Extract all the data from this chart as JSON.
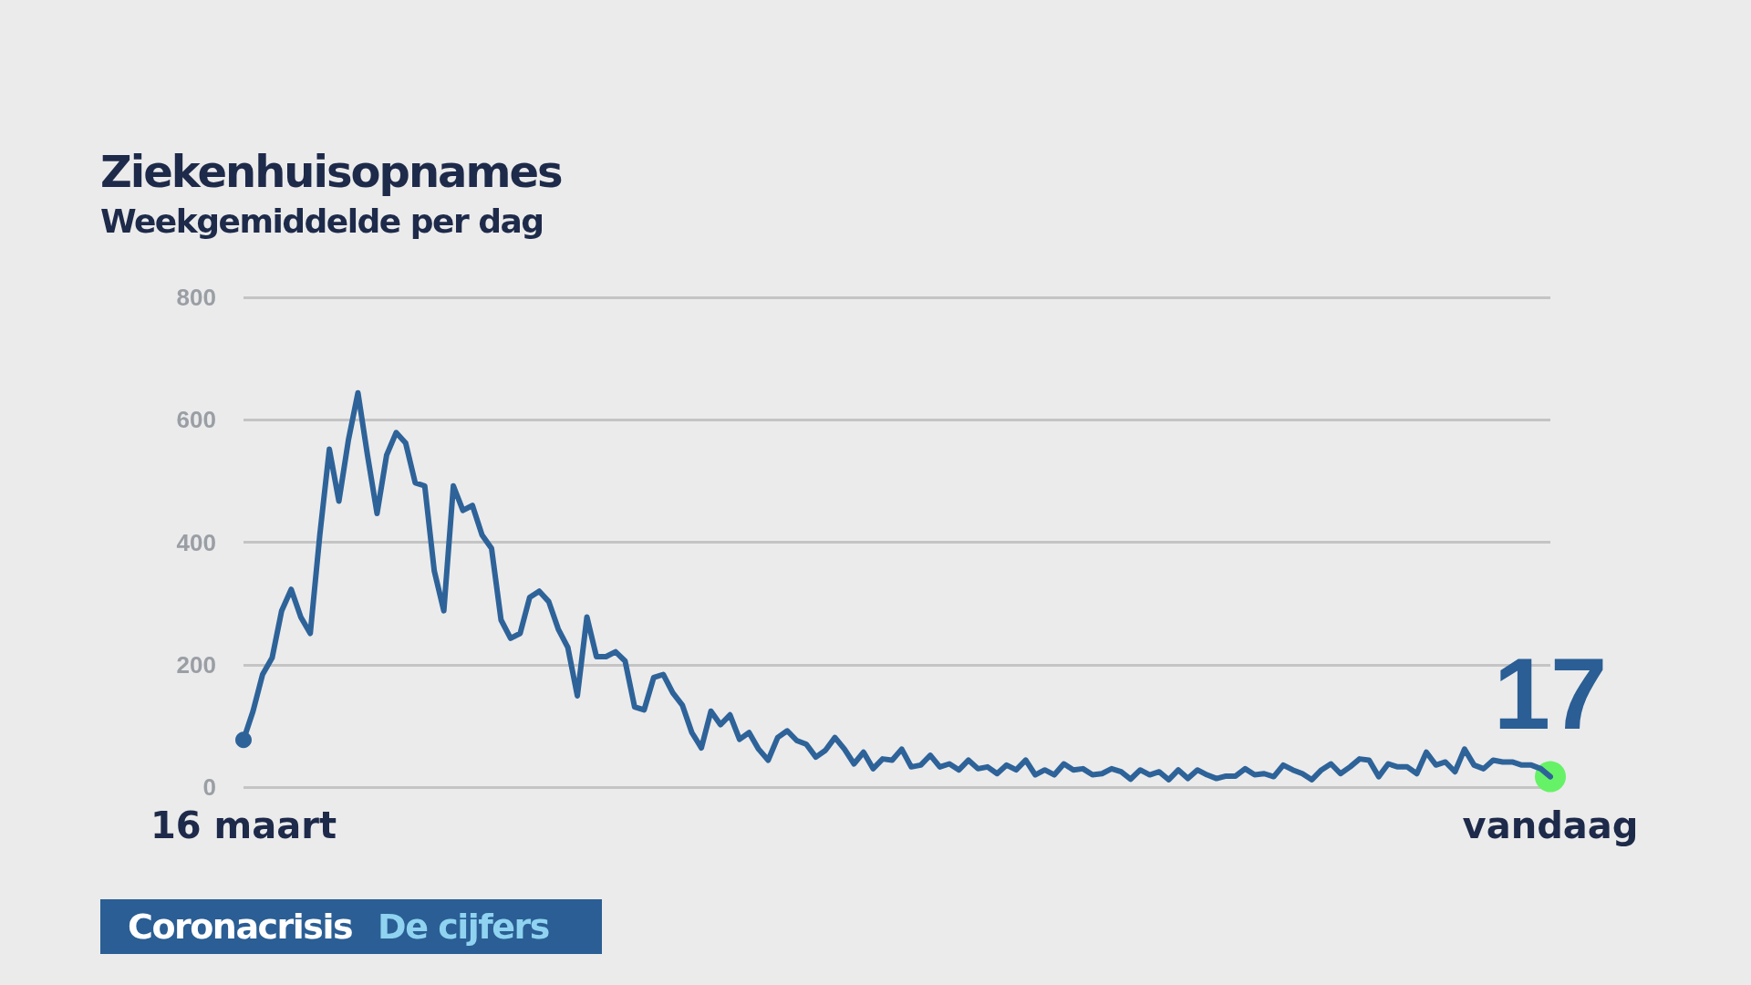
{
  "chart_data": {
    "type": "line",
    "title": "Ziekenhuisopnames",
    "subtitle": "Weekgemiddelde per dag",
    "annotations": [
      "Coronacrisis",
      "De cijfers"
    ],
    "categories": [
      "16 maart",
      null,
      null,
      null,
      null,
      null,
      null,
      null,
      null,
      null,
      null,
      null,
      null,
      null,
      null,
      null,
      null,
      null,
      null,
      null,
      null,
      null,
      null,
      null,
      null,
      null,
      null,
      null,
      null,
      null,
      null,
      null,
      null,
      null,
      null,
      null,
      null,
      null,
      null,
      null,
      null,
      null,
      null,
      null,
      null,
      null,
      null,
      null,
      null,
      null,
      null,
      null,
      null,
      null,
      null,
      null,
      null,
      null,
      null,
      null,
      null,
      null,
      null,
      null,
      null,
      null,
      null,
      null,
      null,
      null,
      null,
      null,
      null,
      null,
      null,
      null,
      null,
      null,
      null,
      null,
      null,
      null,
      null,
      null,
      null,
      null,
      null,
      null,
      null,
      null,
      null,
      null,
      null,
      null,
      null,
      null,
      null,
      null,
      null,
      null,
      null,
      null,
      null,
      null,
      null,
      null,
      null,
      null,
      null,
      null,
      null,
      null,
      null,
      null,
      null,
      null,
      null,
      null,
      null,
      null,
      null,
      null,
      null,
      null,
      null,
      null,
      null,
      null,
      null,
      null,
      null,
      null,
      null,
      null,
      null,
      null,
      null,
      "vandaag"
    ],
    "series": [
      {
        "color": "#2e6399",
        "marker": "none",
        "values": [
          77,
          124,
          184,
          211,
          288,
          323,
          278,
          251,
          412,
          552,
          467,
          567,
          644,
          542,
          447,
          542,
          579,
          562,
          497,
          492,
          353,
          288,
          492,
          452,
          460,
          412,
          390,
          273,
          243,
          251,
          310,
          320,
          303,
          258,
          228,
          149,
          278,
          213,
          213,
          221,
          206,
          131,
          126,
          179,
          184,
          154,
          134,
          89,
          64,
          124,
          102,
          118,
          78,
          89,
          62,
          44,
          81,
          92,
          76,
          70,
          49,
          60,
          81,
          62,
          38,
          57,
          30,
          46,
          44,
          62,
          33,
          36,
          52,
          33,
          38,
          28,
          44,
          30,
          33,
          22,
          36,
          28,
          44,
          20,
          28,
          20,
          38,
          28,
          30,
          20,
          22,
          30,
          25,
          13,
          28,
          20,
          25,
          12,
          28,
          14,
          28,
          20,
          14,
          18,
          18,
          30,
          20,
          22,
          17,
          36,
          28,
          22,
          12,
          28,
          38,
          22,
          33,
          46,
          44,
          17,
          38,
          33,
          33,
          22,
          57,
          36,
          41,
          25,
          62,
          36,
          30,
          44,
          41,
          41,
          36,
          36,
          30,
          17
        ]
      },
      {
        "type": "scatter",
        "color": "#2e6399",
        "marker": "circle",
        "x": [
          "16 maart"
        ],
        "values": [
          77
        ]
      },
      {
        "type": "scatter",
        "color": "#66f266",
        "marker": "circle",
        "x": [
          "vandaag"
        ],
        "values": [
          17
        ],
        "value_labels": [
          "17"
        ]
      }
    ],
    "ylim": [
      0,
      800
    ],
    "yticks": [
      0,
      200,
      400,
      600,
      800
    ],
    "grid": "y"
  }
}
